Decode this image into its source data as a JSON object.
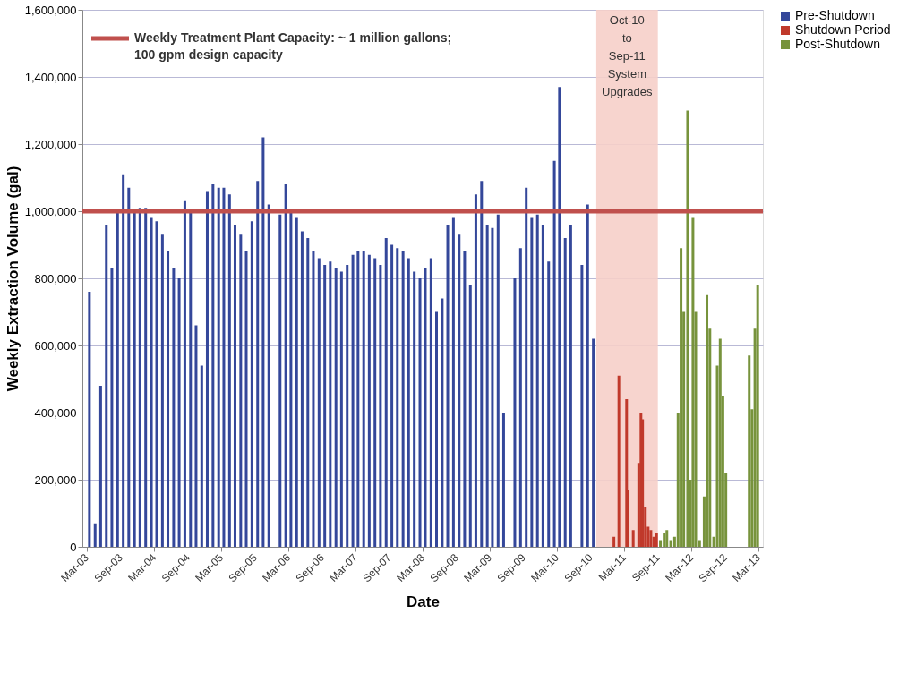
{
  "chart_data": {
    "type": "bar",
    "xlabel": "Date",
    "ylabel": "Weekly Extraction Volume (gal)",
    "xlim": [
      "2003-03-01",
      "2013-03-01"
    ],
    "xticks": [
      {
        "value": "2003-03-01",
        "label": "Mar-03"
      },
      {
        "value": "2003-09-01",
        "label": "Sep-03"
      },
      {
        "value": "2004-03-01",
        "label": "Mar-04"
      },
      {
        "value": "2004-09-01",
        "label": "Sep-04"
      },
      {
        "value": "2005-03-01",
        "label": "Mar-05"
      },
      {
        "value": "2005-09-01",
        "label": "Sep-05"
      },
      {
        "value": "2006-03-01",
        "label": "Mar-06"
      },
      {
        "value": "2006-09-01",
        "label": "Sep-06"
      },
      {
        "value": "2007-03-01",
        "label": "Mar-07"
      },
      {
        "value": "2007-09-01",
        "label": "Sep-07"
      },
      {
        "value": "2008-03-01",
        "label": "Mar-08"
      },
      {
        "value": "2008-09-01",
        "label": "Sep-08"
      },
      {
        "value": "2009-03-01",
        "label": "Mar-09"
      },
      {
        "value": "2009-09-01",
        "label": "Sep-09"
      },
      {
        "value": "2010-03-01",
        "label": "Mar-10"
      },
      {
        "value": "2010-09-01",
        "label": "Sep-10"
      },
      {
        "value": "2011-03-01",
        "label": "Mar-11"
      },
      {
        "value": "2011-09-01",
        "label": "Sep-11"
      },
      {
        "value": "2012-03-01",
        "label": "Mar-12"
      },
      {
        "value": "2012-09-01",
        "label": "Sep-12"
      },
      {
        "value": "2013-03-01",
        "label": "Mar-13"
      }
    ],
    "ylim": [
      0,
      1600000
    ],
    "yticks": [
      0,
      {
        "value": 200000,
        "label": "200,000"
      },
      {
        "value": 400000,
        "label": "400,000"
      },
      {
        "value": 600000,
        "label": "600,000"
      },
      {
        "value": 800000,
        "label": "800,000"
      },
      {
        "value": 1000000,
        "label": "1,000,000"
      },
      {
        "value": 1200000,
        "label": "1,200,000"
      },
      {
        "value": 1400000,
        "label": "1,400,000"
      },
      {
        "value": 1600000,
        "label": "1,600,000"
      }
    ],
    "grid": "y",
    "legend": "right",
    "series": [
      {
        "name": "Pre-Shutdown",
        "color": "#34479a",
        "x": [
          "2003-03-15",
          "2003-04-15",
          "2003-05-15",
          "2003-06-15",
          "2003-07-15",
          "2003-08-15",
          "2003-09-15",
          "2003-10-15",
          "2003-11-15",
          "2003-12-15",
          "2004-01-15",
          "2004-02-15",
          "2004-03-15",
          "2004-04-15",
          "2004-05-15",
          "2004-06-15",
          "2004-07-15",
          "2004-08-15",
          "2004-09-15",
          "2004-10-15",
          "2004-11-15",
          "2004-12-15",
          "2005-01-15",
          "2005-02-15",
          "2005-03-15",
          "2005-04-15",
          "2005-05-15",
          "2005-06-15",
          "2005-07-15",
          "2005-08-15",
          "2005-09-15",
          "2005-10-15",
          "2005-11-15",
          "2005-12-15",
          "2006-01-15",
          "2006-02-15",
          "2006-03-15",
          "2006-04-15",
          "2006-05-15",
          "2006-06-15",
          "2006-07-15",
          "2006-08-15",
          "2006-09-15",
          "2006-10-15",
          "2006-11-15",
          "2006-12-15",
          "2007-01-15",
          "2007-02-15",
          "2007-03-15",
          "2007-04-15",
          "2007-05-15",
          "2007-06-15",
          "2007-07-15",
          "2007-08-15",
          "2007-09-15",
          "2007-10-15",
          "2007-11-15",
          "2007-12-15",
          "2008-01-15",
          "2008-02-15",
          "2008-03-15",
          "2008-04-15",
          "2008-05-15",
          "2008-06-15",
          "2008-07-15",
          "2008-08-15",
          "2008-09-15",
          "2008-10-15",
          "2008-11-15",
          "2008-12-15",
          "2009-01-15",
          "2009-02-15",
          "2009-03-15",
          "2009-04-15",
          "2009-05-15",
          "2009-06-15",
          "2009-07-15",
          "2009-08-15",
          "2009-09-15",
          "2009-10-15",
          "2009-11-15",
          "2009-12-15",
          "2010-01-15",
          "2010-02-15",
          "2010-03-15",
          "2010-04-15",
          "2010-05-15",
          "2010-06-15",
          "2010-07-15",
          "2010-08-15",
          "2010-09-15"
        ],
        "values": [
          760000,
          70000,
          480000,
          960000,
          830000,
          1000000,
          1110000,
          1070000,
          1000000,
          1010000,
          1010000,
          980000,
          970000,
          930000,
          880000,
          830000,
          800000,
          1030000,
          1000000,
          660000,
          540000,
          1060000,
          1080000,
          1070000,
          1070000,
          1050000,
          960000,
          930000,
          880000,
          970000,
          1090000,
          1220000,
          1020000,
          0,
          990000,
          1080000,
          1000000,
          980000,
          940000,
          920000,
          880000,
          860000,
          840000,
          850000,
          830000,
          820000,
          840000,
          870000,
          880000,
          880000,
          870000,
          860000,
          840000,
          920000,
          900000,
          890000,
          880000,
          860000,
          820000,
          800000,
          830000,
          860000,
          700000,
          740000,
          960000,
          980000,
          930000,
          880000,
          780000,
          1050000,
          1090000,
          960000,
          950000,
          990000,
          400000,
          0,
          800000,
          890000,
          1070000,
          980000,
          990000,
          960000,
          850000,
          1150000,
          1370000,
          920000,
          960000,
          0,
          840000,
          1020000,
          620000
        ]
      },
      {
        "name": "Shutdown Period",
        "color": "#c0392b",
        "x": [
          "2011-01-05",
          "2011-02-01",
          "2011-03-15",
          "2011-03-22",
          "2011-04-20",
          "2011-05-20",
          "2011-06-01",
          "2011-06-10",
          "2011-06-25",
          "2011-07-10",
          "2011-07-25",
          "2011-08-10",
          "2011-08-25"
        ],
        "values": [
          30000,
          510000,
          440000,
          170000,
          50000,
          250000,
          400000,
          380000,
          120000,
          60000,
          50000,
          30000,
          40000
        ]
      },
      {
        "name": "Post-Shutdown",
        "color": "#77933c",
        "x": [
          "2011-09-15",
          "2011-10-05",
          "2011-10-20",
          "2011-11-10",
          "2011-12-01",
          "2011-12-20",
          "2012-01-05",
          "2012-01-20",
          "2012-02-10",
          "2012-02-25",
          "2012-03-10",
          "2012-03-25",
          "2012-04-15",
          "2012-05-10",
          "2012-05-25",
          "2012-06-10",
          "2012-07-01",
          "2012-07-20",
          "2012-08-05",
          "2012-08-20",
          "2012-09-05",
          "2013-01-10",
          "2013-01-25",
          "2013-02-10",
          "2013-02-25"
        ],
        "values": [
          20000,
          40000,
          50000,
          20000,
          30000,
          400000,
          890000,
          700000,
          1300000,
          200000,
          980000,
          700000,
          20000,
          150000,
          750000,
          650000,
          30000,
          540000,
          620000,
          450000,
          220000,
          570000,
          410000,
          650000,
          780000
        ]
      }
    ],
    "ref_lines": [
      {
        "axis": "y",
        "value": 1000000,
        "label": "Weekly  Treatment Plant Capacity: ~ 1 million gallons;\n100 gpm design capacity",
        "color": "#c0504d"
      }
    ],
    "bands": [
      {
        "axis": "x",
        "from": "2010-10-01",
        "to": "2011-09-01",
        "label": "Oct-10\nto\nSep-11\nSystem\nUpgrades",
        "color": "#f6cfc9"
      }
    ]
  }
}
